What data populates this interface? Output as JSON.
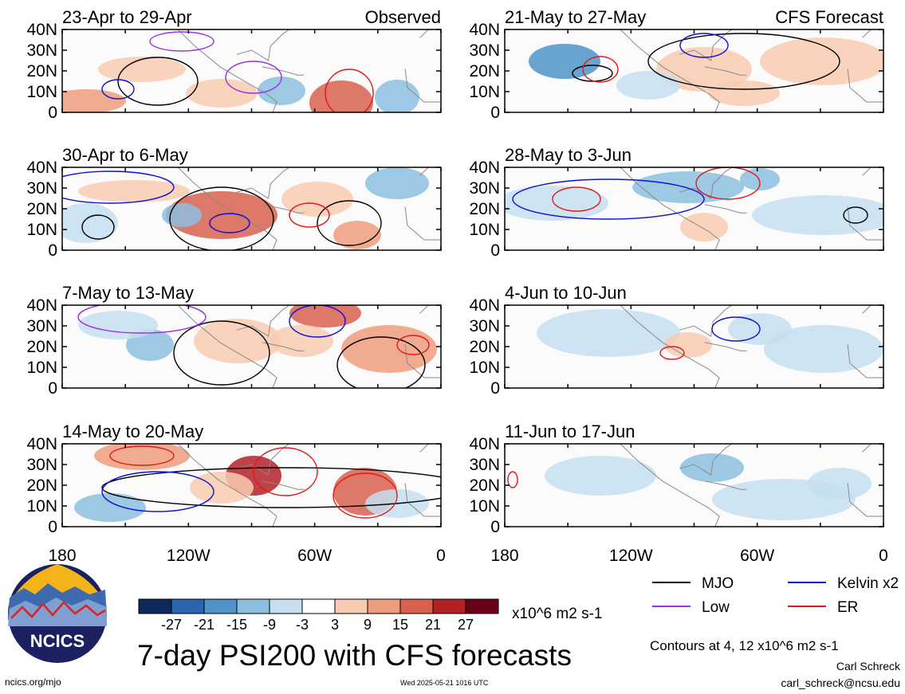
{
  "header": {
    "observed_label": "Observed",
    "forecast_label": "CFS Forecast"
  },
  "panels": [
    {
      "label": "23-Apr to 29-Apr",
      "kind": "observed"
    },
    {
      "label": "21-May to 27-May",
      "kind": "forecast"
    },
    {
      "label": "30-Apr to 6-May",
      "kind": "observed"
    },
    {
      "label": "28-May to 3-Jun",
      "kind": "forecast"
    },
    {
      "label": "7-May to 13-May",
      "kind": "observed"
    },
    {
      "label": "4-Jun to 10-Jun",
      "kind": "forecast"
    },
    {
      "label": "14-May to 20-May",
      "kind": "observed"
    },
    {
      "label": "11-Jun to 17-Jun",
      "kind": "forecast"
    }
  ],
  "chart_data": {
    "type": "heatmap",
    "title": "7-day PSI200 with CFS forecasts",
    "xticks": [
      "180",
      "120W",
      "60W",
      "0"
    ],
    "yticks": [
      "40N",
      "30N",
      "20N",
      "10N",
      "0"
    ],
    "xlim": [
      -180,
      0
    ],
    "ylim": [
      0,
      40
    ],
    "colorbar": {
      "ticks": [
        "-27",
        "-21",
        "-15",
        "-9",
        "-3",
        "3",
        "9",
        "15",
        "21",
        "27"
      ],
      "colors": [
        "#0d2a5c",
        "#2a66b0",
        "#4f93c8",
        "#8cbfdf",
        "#c6dff0",
        "#ffffff",
        "#f8cbb0",
        "#ef9c7c",
        "#d8604d",
        "#b32127",
        "#6a0018"
      ],
      "units": "x10^6 m2 s-1"
    },
    "legend": [
      {
        "name": "MJO",
        "color": "#000000"
      },
      {
        "name": "Kelvin x2",
        "color": "#1010d0"
      },
      {
        "name": "Low",
        "color": "#9a30e0"
      },
      {
        "name": "ER",
        "color": "#e01818"
      }
    ],
    "contour_note": "Contours at 4, 12 x10^6 m2 s-1"
  },
  "logo": {
    "text": "NCICS"
  },
  "footer": {
    "url": "ncics.org/mjo",
    "timestamp": "Wed 2025-05-21 1016 UTC",
    "author": "Carl Schreck",
    "email": "carl_schreck@ncsu.edu"
  }
}
